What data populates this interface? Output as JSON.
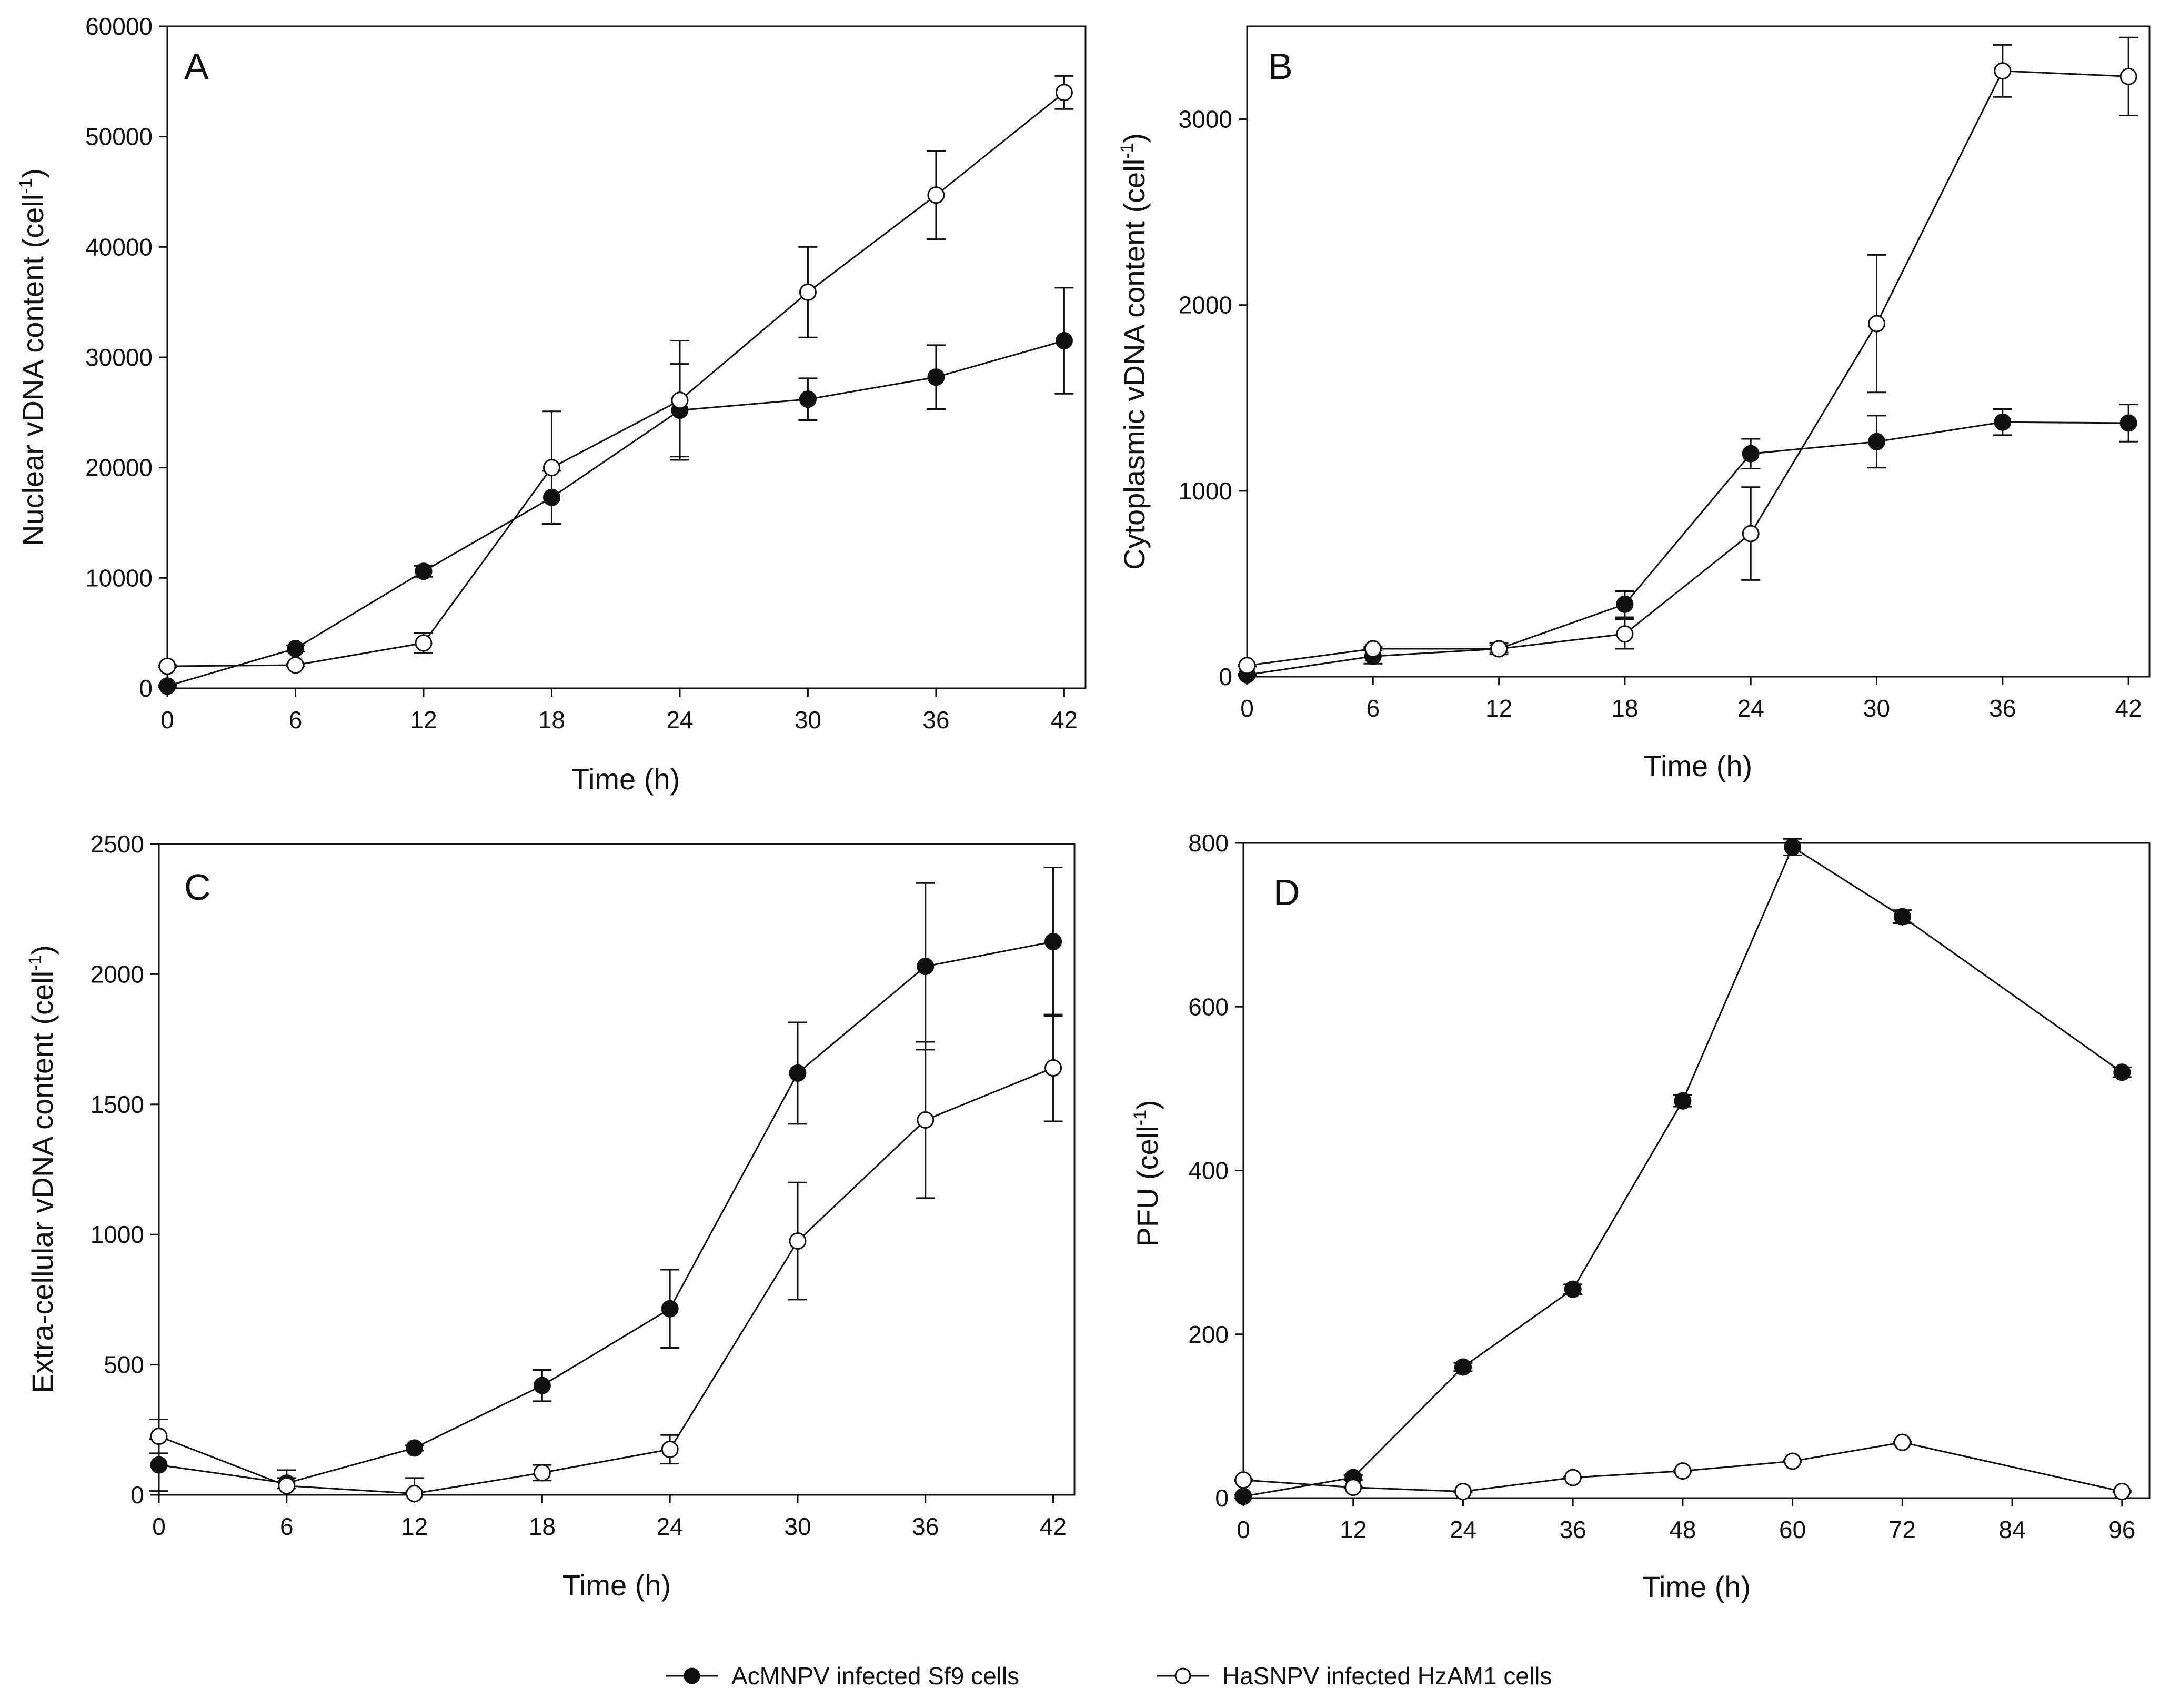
{
  "colors": {
    "acmnpv": "#111111",
    "hasnpv": "#ffffff",
    "stroke": "#111111"
  },
  "legend": {
    "acmnpv_label": "AcMNPV infected Sf9 cells",
    "hasnpv_label": "HaSNPV infected HzAM1 cells"
  },
  "chart_data": [
    {
      "panel": "A",
      "type": "line",
      "xlabel": "Time (h)",
      "ylabel_main": "Nuclear vDNA content (cell",
      "ylabel_sup": "-1",
      "ylabel_close": ")",
      "xlim": [
        0,
        43
      ],
      "ylim": [
        0,
        60000
      ],
      "xticks": [
        0,
        6,
        12,
        18,
        24,
        30,
        36,
        42
      ],
      "yticks": [
        0,
        10000,
        20000,
        30000,
        40000,
        50000,
        60000
      ],
      "legend": "bottom-center",
      "series": [
        {
          "name": "AcMNPV infected Sf9 cells",
          "marker": "filled",
          "x": [
            0,
            6,
            12,
            18,
            24,
            30,
            36,
            42
          ],
          "y": [
            200,
            3600,
            10600,
            17300,
            25200,
            26200,
            28200,
            31500
          ],
          "err": [
            100,
            300,
            500,
            2400,
            4200,
            1900,
            2900,
            4800
          ]
        },
        {
          "name": "HaSNPV infected HzAM1 cells",
          "marker": "open",
          "x": [
            0,
            6,
            12,
            18,
            24,
            30,
            36,
            42
          ],
          "y": [
            2000,
            2100,
            4100,
            20000,
            26100,
            35900,
            44700,
            54000
          ],
          "err": [
            100,
            100,
            900,
            5100,
            5400,
            4100,
            4000,
            1500
          ]
        }
      ]
    },
    {
      "panel": "B",
      "type": "line",
      "xlabel": "Time (h)",
      "ylabel_main": "Cytoplasmic vDNA content (cell",
      "ylabel_sup": "-1",
      "ylabel_close": ")",
      "xlim": [
        0,
        43
      ],
      "ylim": [
        0,
        3500
      ],
      "xticks": [
        0,
        6,
        12,
        18,
        24,
        30,
        36,
        42
      ],
      "yticks": [
        0,
        1000,
        2000,
        3000
      ],
      "legend": "bottom-center",
      "series": [
        {
          "name": "AcMNPV infected Sf9 cells",
          "marker": "filled",
          "x": [
            0,
            6,
            12,
            18,
            24,
            30,
            36,
            42
          ],
          "y": [
            10,
            110,
            150,
            390,
            1200,
            1265,
            1370,
            1365
          ],
          "err": [
            5,
            40,
            30,
            70,
            80,
            140,
            70,
            100
          ]
        },
        {
          "name": "HaSNPV infected HzAM1 cells",
          "marker": "open",
          "x": [
            0,
            6,
            12,
            18,
            24,
            30,
            36,
            42
          ],
          "y": [
            60,
            150,
            150,
            230,
            770,
            1900,
            3260,
            3230
          ],
          "err": [
            5,
            10,
            20,
            80,
            250,
            370,
            140,
            210
          ]
        }
      ]
    },
    {
      "panel": "C",
      "type": "line",
      "xlabel": "Time (h)",
      "ylabel_main": "Extra-cellular vDNA content (cell",
      "ylabel_sup": "-1",
      "ylabel_close": ")",
      "xlim": [
        0,
        43
      ],
      "ylim": [
        0,
        2500
      ],
      "xticks": [
        0,
        6,
        12,
        18,
        24,
        30,
        36,
        42
      ],
      "yticks": [
        0,
        500,
        1000,
        1500,
        2000,
        2500
      ],
      "legend": "bottom-center",
      "series": [
        {
          "name": "AcMNPV infected Sf9 cells",
          "marker": "filled",
          "x": [
            0,
            6,
            12,
            18,
            24,
            30,
            36,
            42
          ],
          "y": [
            115,
            45,
            180,
            420,
            715,
            1620,
            2030,
            2125
          ],
          "err": [
            100,
            20,
            10,
            60,
            150,
            195,
            320,
            285
          ]
        },
        {
          "name": "HaSNPV infected HzAM1 cells",
          "marker": "open",
          "x": [
            0,
            6,
            12,
            18,
            24,
            30,
            36,
            42
          ],
          "y": [
            225,
            35,
            5,
            85,
            175,
            975,
            1440,
            1640
          ],
          "err": [
            65,
            60,
            60,
            30,
            55,
            225,
            300,
            205
          ]
        }
      ]
    },
    {
      "panel": "D",
      "type": "line",
      "xlabel": "Time (h)",
      "ylabel_main": "PFU (cell",
      "ylabel_sup": "-1",
      "ylabel_close": ")",
      "xlim": [
        0,
        99
      ],
      "ylim": [
        0,
        800
      ],
      "xticks": [
        0,
        12,
        24,
        36,
        48,
        60,
        72,
        84,
        96
      ],
      "yticks": [
        0,
        200,
        400,
        600,
        800
      ],
      "legend": "bottom-center",
      "series": [
        {
          "name": "AcMNPV infected Sf9 cells",
          "marker": "filled",
          "x": [
            0,
            12,
            24,
            36,
            48,
            60,
            72,
            96
          ],
          "y": [
            2,
            25,
            160,
            255,
            485,
            795,
            710,
            520
          ],
          "err": [
            2,
            3,
            5,
            6,
            7,
            10,
            8,
            6
          ]
        },
        {
          "name": "HaSNPV infected HzAM1 cells",
          "marker": "open",
          "x": [
            0,
            12,
            24,
            36,
            48,
            60,
            72,
            96
          ],
          "y": [
            22,
            13,
            8,
            25,
            33,
            45,
            68,
            8
          ],
          "err": [
            1,
            1,
            1,
            1,
            1,
            1,
            1,
            1
          ]
        }
      ]
    }
  ]
}
